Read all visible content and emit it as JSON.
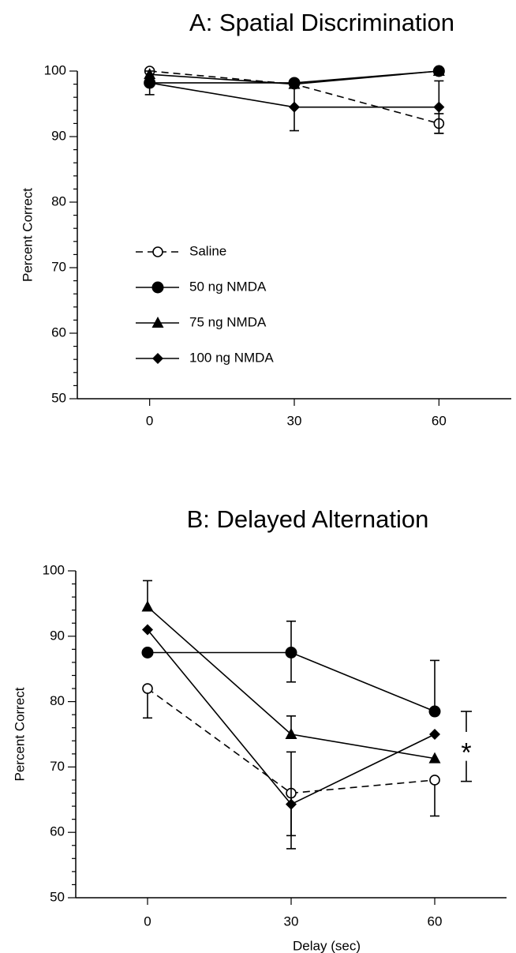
{
  "chart_data": [
    {
      "type": "line",
      "title": "A: Spatial Discrimination",
      "xlabel": "",
      "ylabel": "Percent Correct",
      "x": [
        0,
        30,
        60
      ],
      "xticks": [
        "0",
        "30",
        "60"
      ],
      "xlim": [
        -15,
        75
      ],
      "ylim": [
        50,
        100
      ],
      "yticks": [
        "50",
        "60",
        "70",
        "80",
        "90",
        "100"
      ],
      "legend": {
        "placement": "center-left",
        "entries": [
          "Saline",
          "50 ng NMDA",
          "75 ng NMDA",
          "100 ng NMDA"
        ]
      },
      "series": [
        {
          "name": "Saline",
          "marker": "open-circle",
          "line": "dashed",
          "values": [
            100,
            98,
            92
          ],
          "err_low": [
            0,
            0,
            1.5
          ],
          "err_high": [
            0,
            0,
            1.5
          ]
        },
        {
          "name": "50 ng NMDA",
          "marker": "filled-circle",
          "line": "solid",
          "values": [
            98.2,
            98.2,
            100
          ],
          "err_low": [
            0,
            0,
            0
          ],
          "err_high": [
            0,
            0,
            0
          ]
        },
        {
          "name": "75 ng NMDA",
          "marker": "filled-triangle",
          "line": "solid",
          "values": [
            99.5,
            98,
            100
          ],
          "err_low": [
            0,
            0,
            0
          ],
          "err_high": [
            0,
            0,
            0
          ]
        },
        {
          "name": "100 ng NMDA",
          "marker": "filled-diamond",
          "line": "solid",
          "values": [
            98.2,
            94.5,
            94.5
          ],
          "err_low": [
            1.8,
            3.6,
            4
          ],
          "err_high": [
            1.8,
            3.6,
            4
          ]
        }
      ]
    },
    {
      "type": "line",
      "title": "B: Delayed Alternation",
      "xlabel": "Delay (sec)",
      "ylabel": "Percent Correct",
      "x": [
        0,
        30,
        60
      ],
      "xticks": [
        "0",
        "30",
        "60"
      ],
      "xlim": [
        -15,
        75
      ],
      "ylim": [
        50,
        100
      ],
      "yticks": [
        "50",
        "60",
        "70",
        "80",
        "90",
        "100"
      ],
      "annotation": "*",
      "series": [
        {
          "name": "Saline",
          "marker": "open-circle",
          "line": "dashed",
          "values": [
            82,
            66,
            68
          ],
          "err_low": [
            4.5,
            6.5,
            5.5
          ],
          "err_high": [
            0,
            0,
            0
          ]
        },
        {
          "name": "50 ng NMDA",
          "marker": "filled-circle",
          "line": "solid",
          "values": [
            87.5,
            87.5,
            78.5
          ],
          "err_low": [
            0,
            4.5,
            0
          ],
          "err_high": [
            0,
            4.8,
            7.8
          ]
        },
        {
          "name": "75 ng NMDA",
          "marker": "filled-triangle",
          "line": "solid",
          "values": [
            94.5,
            75,
            71.3
          ],
          "err_low": [
            0,
            0,
            0
          ],
          "err_high": [
            4,
            2.8,
            0
          ]
        },
        {
          "name": "100 ng NMDA",
          "marker": "filled-diamond",
          "line": "solid",
          "values": [
            91,
            64.3,
            75
          ],
          "err_low": [
            0,
            6.8,
            0
          ],
          "err_high": [
            0,
            8,
            0
          ]
        }
      ]
    }
  ]
}
